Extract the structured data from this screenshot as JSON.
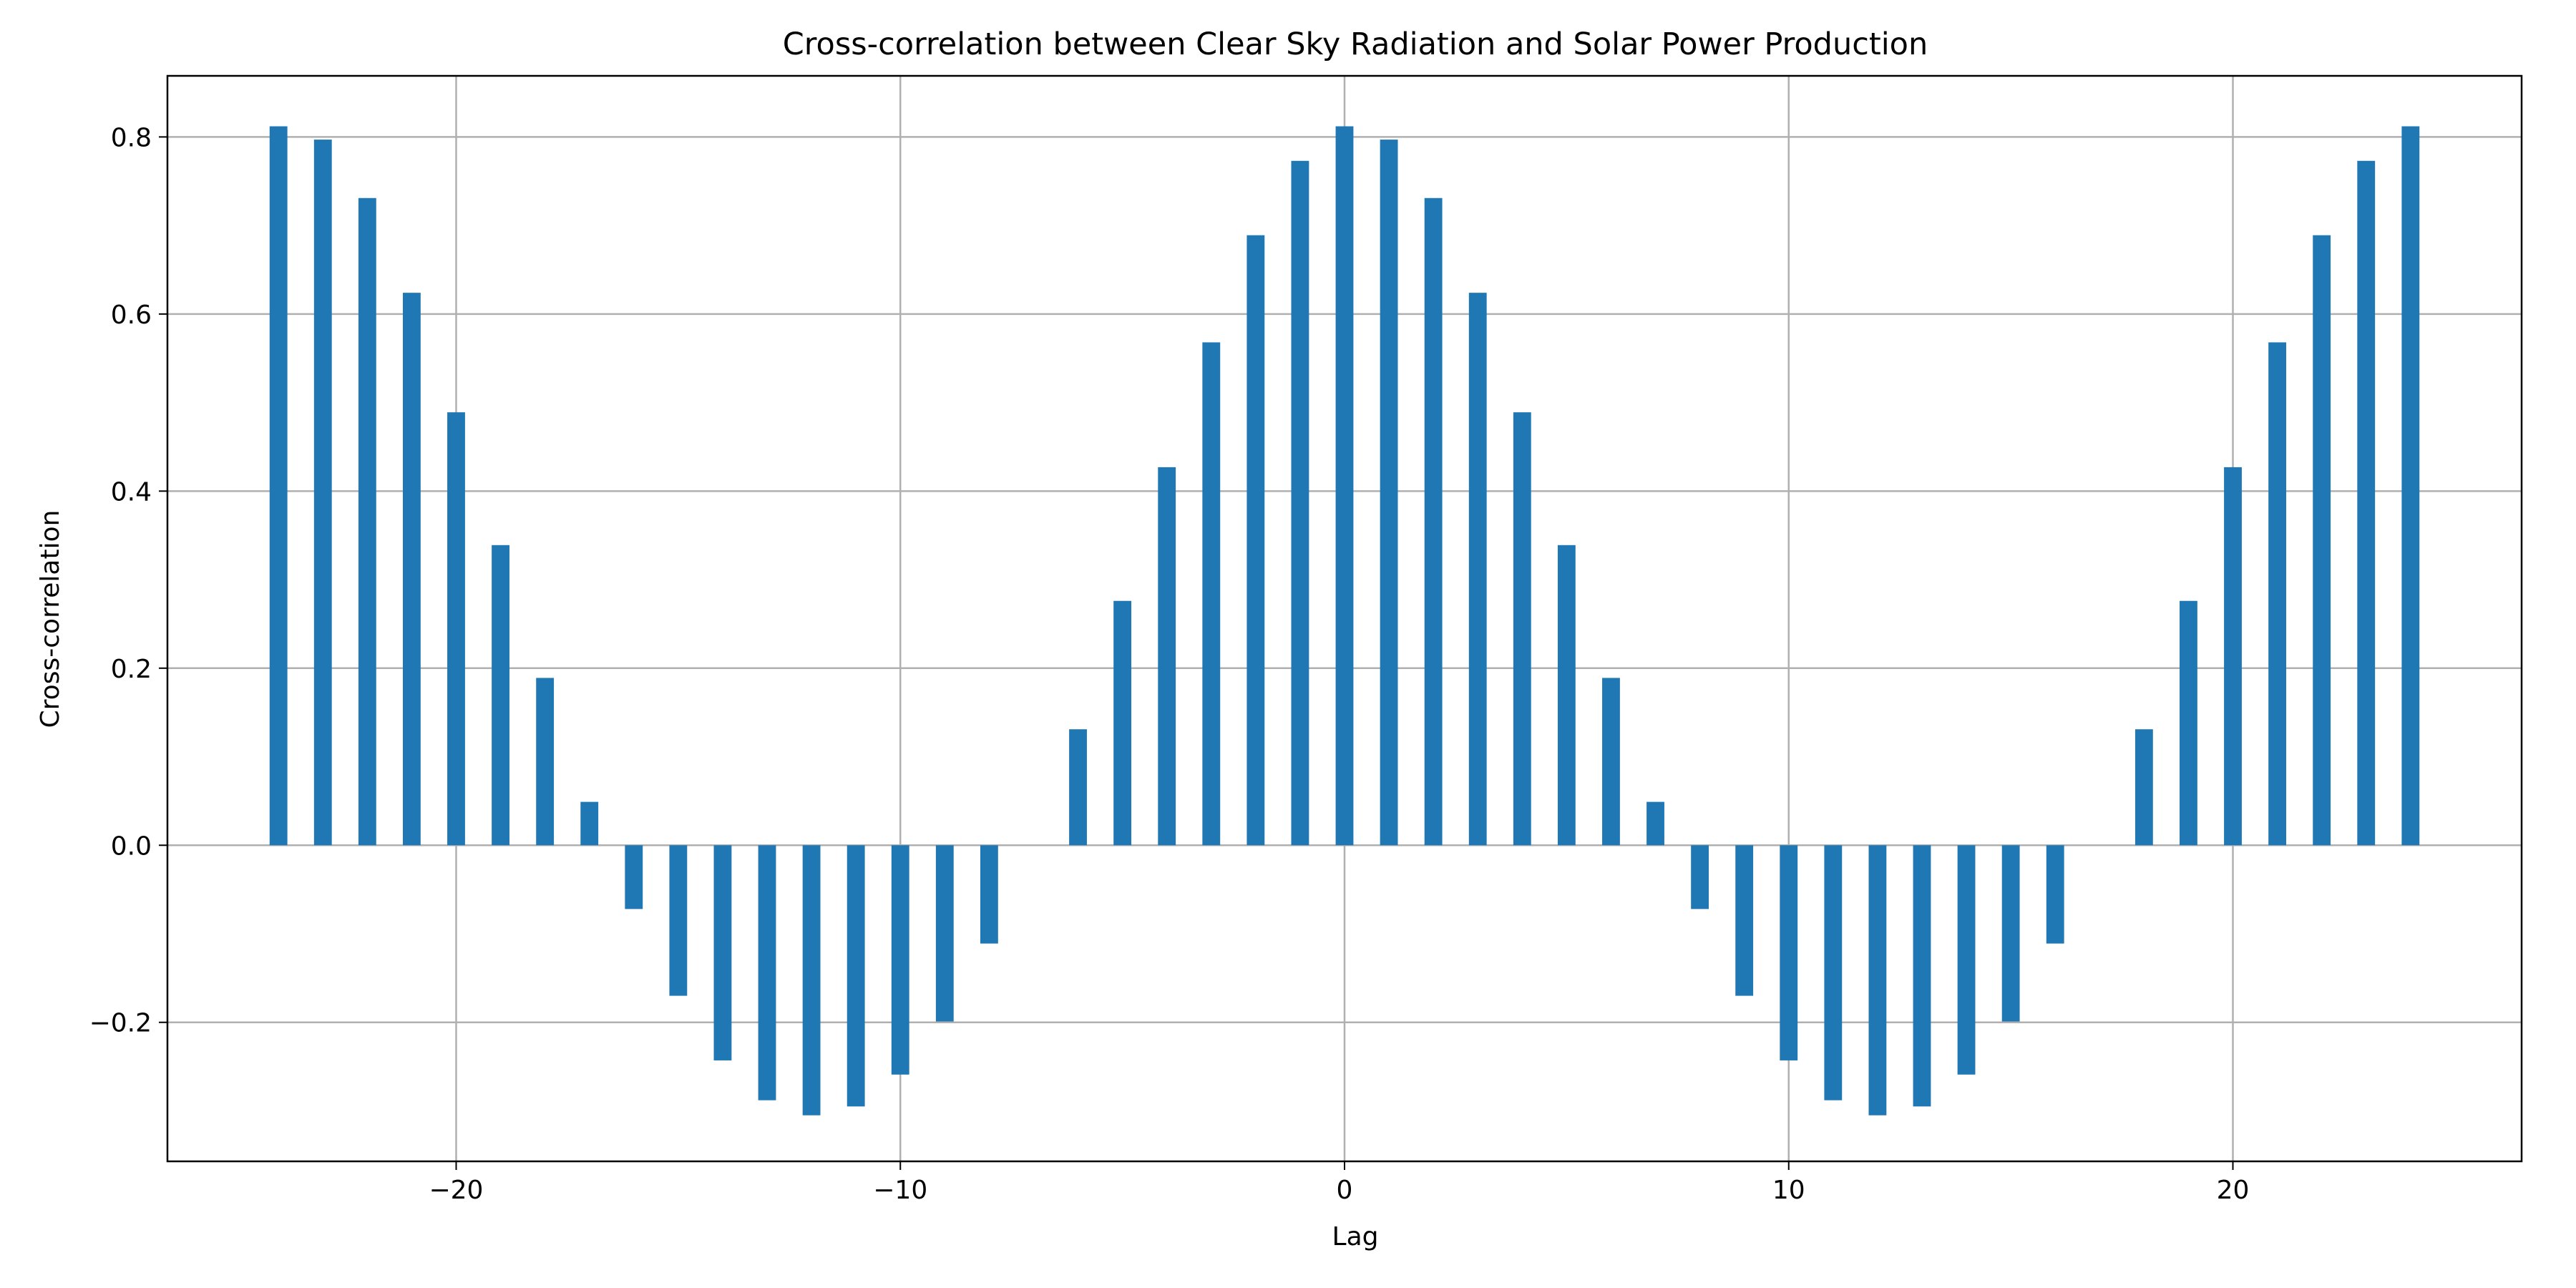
{
  "chart_data": {
    "type": "bar",
    "title": "Cross-correlation between Clear Sky Radiation and Solar Power Production",
    "xlabel": "Lag",
    "ylabel": "Cross-correlation",
    "x": [
      -24,
      -23,
      -22,
      -21,
      -20,
      -19,
      -18,
      -17,
      -16,
      -15,
      -14,
      -13,
      -12,
      -11,
      -10,
      -9,
      -8,
      -7,
      -6,
      -5,
      -4,
      -3,
      -2,
      -1,
      0,
      1,
      2,
      3,
      4,
      5,
      6,
      7,
      8,
      9,
      10,
      11,
      12,
      13,
      14,
      15,
      16,
      17,
      18,
      19,
      20,
      21,
      22,
      23,
      24
    ],
    "values": [
      0.812,
      0.797,
      0.731,
      0.624,
      0.489,
      0.339,
      0.189,
      0.049,
      -0.072,
      -0.17,
      -0.243,
      -0.288,
      -0.305,
      -0.295,
      -0.259,
      -0.199,
      -0.111,
      0.0,
      0.131,
      0.276,
      0.427,
      0.568,
      0.689,
      0.773,
      0.812,
      0.797,
      0.731,
      0.624,
      0.489,
      0.339,
      0.189,
      0.049,
      -0.072,
      -0.17,
      -0.243,
      -0.288,
      -0.305,
      -0.295,
      -0.259,
      -0.199,
      -0.111,
      0.0,
      0.131,
      0.276,
      0.427,
      0.568,
      0.689,
      0.773,
      0.812
    ],
    "xlim": [
      -26.5,
      26.5
    ],
    "ylim": [
      -0.357,
      0.869
    ],
    "xticks": [
      -20,
      -10,
      0,
      10,
      20
    ],
    "xtick_labels": [
      "−20",
      "−10",
      "0",
      "10",
      "20"
    ],
    "yticks": [
      -0.2,
      0.0,
      0.2,
      0.4,
      0.6,
      0.8
    ],
    "ytick_labels": [
      "−0.2",
      "0.0",
      "0.2",
      "0.4",
      "0.6",
      "0.8"
    ],
    "bar_width": 0.4,
    "bar_color": "#1f77b4",
    "grid": true
  }
}
